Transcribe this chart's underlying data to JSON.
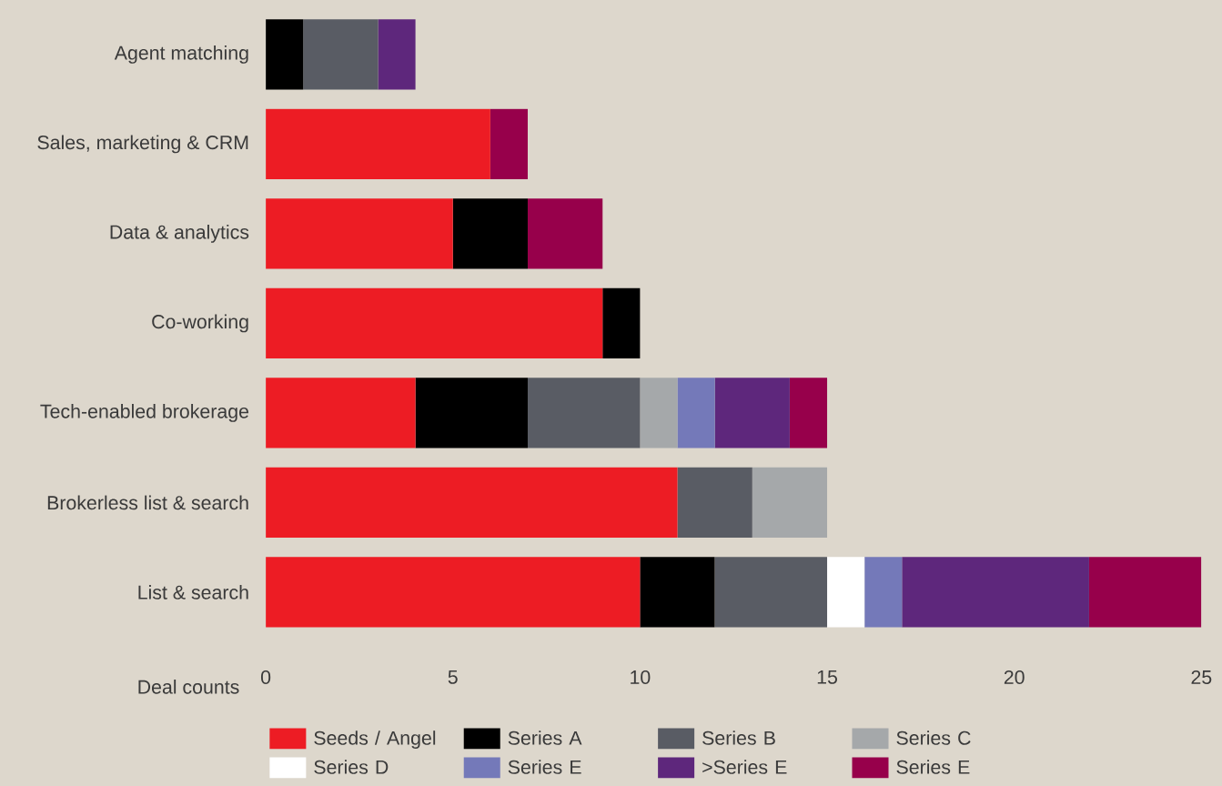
{
  "chart_data": {
    "type": "bar",
    "orientation": "horizontal",
    "stacked": true,
    "xlabel": "Deal counts",
    "categories": [
      "Agent matching",
      "Sales, marketing & CRM",
      "Data & analytics",
      "Co-working",
      "Tech-enabled brokerage",
      "Brokerless list & search",
      "List & search"
    ],
    "series": [
      {
        "name": "Seeds / Angel",
        "color": "#ed1c24",
        "values": [
          0,
          6,
          5,
          9,
          4,
          11,
          10
        ]
      },
      {
        "name": "Series A",
        "color": "#000000",
        "values": [
          1,
          0,
          2,
          1,
          3,
          0,
          2
        ]
      },
      {
        "name": "Series B",
        "color": "#595c64",
        "values": [
          2,
          0,
          0,
          0,
          3,
          2,
          3
        ]
      },
      {
        "name": "Series C",
        "color": "#a5a8aa",
        "values": [
          0,
          0,
          0,
          0,
          1,
          2,
          0
        ]
      },
      {
        "name": "Series D",
        "color": "#ffffff",
        "values": [
          0,
          0,
          0,
          0,
          0,
          0,
          1
        ]
      },
      {
        "name": "Series E",
        "color": "#7479b9",
        "values": [
          0,
          0,
          0,
          0,
          1,
          0,
          1
        ]
      },
      {
        "name": ">Series E",
        "color": "#5e277c",
        "values": [
          1,
          0,
          0,
          0,
          2,
          0,
          5
        ]
      },
      {
        "name": "Series E",
        "color": "#97004b",
        "values": [
          0,
          1,
          2,
          0,
          1,
          0,
          3
        ]
      }
    ],
    "xlim": [
      0,
      25
    ],
    "xticks": [
      0,
      5,
      10,
      15,
      20,
      25
    ],
    "grid": false,
    "legend": "bottom"
  }
}
